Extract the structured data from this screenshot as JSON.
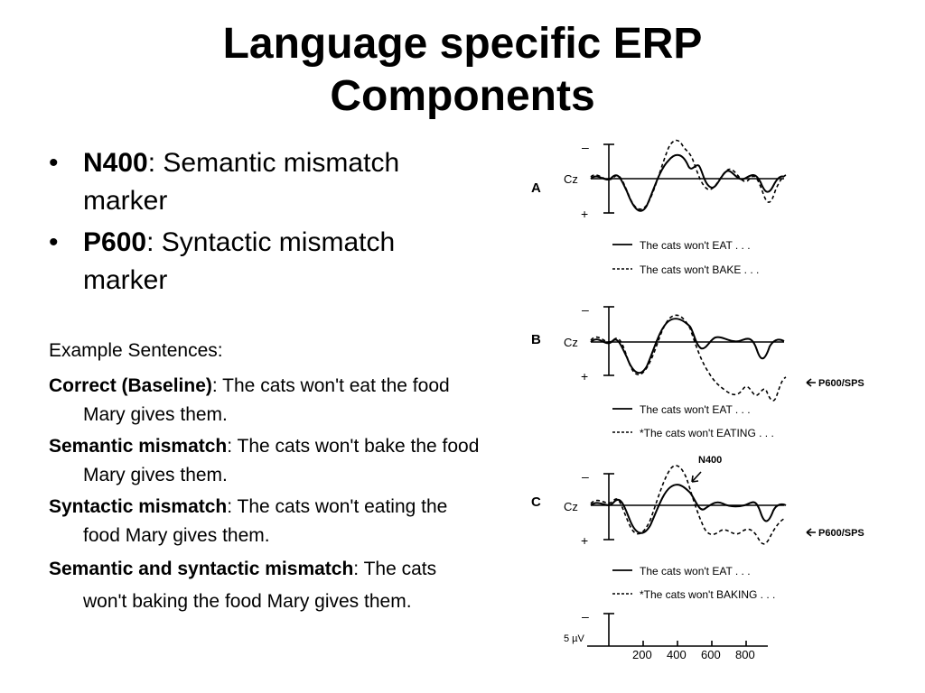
{
  "title_line1": "Language specific ERP",
  "title_line2": "Components",
  "bullets": [
    {
      "term": "N400",
      "rest": ": Semantic mismatch marker"
    },
    {
      "term": "P600",
      "rest": ": Syntactic mismatch marker"
    }
  ],
  "examples_heading": "Example Sentences:",
  "examples": [
    {
      "label": "Correct (Baseline)",
      "text": ": The cats won't eat the food Mary gives them."
    },
    {
      "label": "Semantic mismatch",
      "text": ": The cats won't bake the food Mary gives them."
    },
    {
      "label": "Syntactic mismatch",
      "text": ": The cats won't eating the food Mary gives them."
    },
    {
      "label": "Semantic and syntactic mismatch",
      "text": ": The cats won't baking the food Mary gives them."
    }
  ],
  "figure": {
    "panels": [
      {
        "letter": "A",
        "electrode": "Cz",
        "minus": "–",
        "plus": "+",
        "legend_solid": "The cats won't EAT . . .",
        "legend_dashed": "The cats won't BAKE . . .",
        "annotation": ""
      },
      {
        "letter": "B",
        "electrode": "Cz",
        "minus": "–",
        "plus": "+",
        "legend_solid": "The cats won't EAT . . .",
        "legend_dashed": "*The cats won't EATING . . .",
        "annotation": "P600/SPS"
      },
      {
        "letter": "C",
        "electrode": "Cz",
        "minus": "–",
        "plus": "+",
        "legend_solid": "The cats won't EAT . . .",
        "legend_dashed": "*The cats won't BAKING . . .",
        "annotation": "P600/SPS",
        "peak_label": "N400"
      }
    ],
    "scale": {
      "minus": "–",
      "unit": "5 µV",
      "ticks": [
        "200",
        "400",
        "600",
        "800"
      ]
    }
  }
}
